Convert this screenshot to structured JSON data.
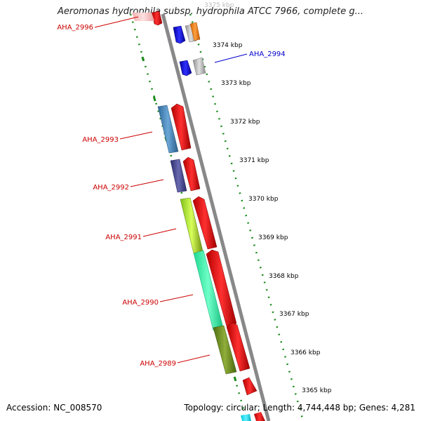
{
  "title": "Aeromonas hydrophila subsp. hydrophila ATCC 7966, complete g...",
  "footer": {
    "accession": "Accession: NC_008570",
    "stats": "Topology: circular; Length: 4,744,448 bp; Genes: 4,281"
  },
  "ticks": [
    "3375 kbp",
    "3374 kbp",
    "3373 kbp",
    "3372 kbp",
    "3371 kbp",
    "3370 kbp",
    "3369 kbp",
    "3368 kbp",
    "3367 kbp",
    "3366 kbp",
    "3365 kbp"
  ],
  "gene_labels": [
    {
      "text": "AHA_2996",
      "color": "#cc0000"
    },
    {
      "text": "AHA_2994",
      "color": "#0000cc"
    },
    {
      "text": "AHA_2993",
      "color": "#cc0000"
    },
    {
      "text": "AHA_2992",
      "color": "#cc0000"
    },
    {
      "text": "AHA_2991",
      "color": "#cc0000"
    },
    {
      "text": "AHA_2990",
      "color": "#cc0000"
    },
    {
      "text": "AHA_2989",
      "color": "#cc0000"
    }
  ],
  "colors": {
    "backbone": "#888888",
    "dotted_ring": "#1a8a1a",
    "forward_gene": "#ff0000",
    "label_red": "#cc0000",
    "label_blue": "#0000cc"
  }
}
